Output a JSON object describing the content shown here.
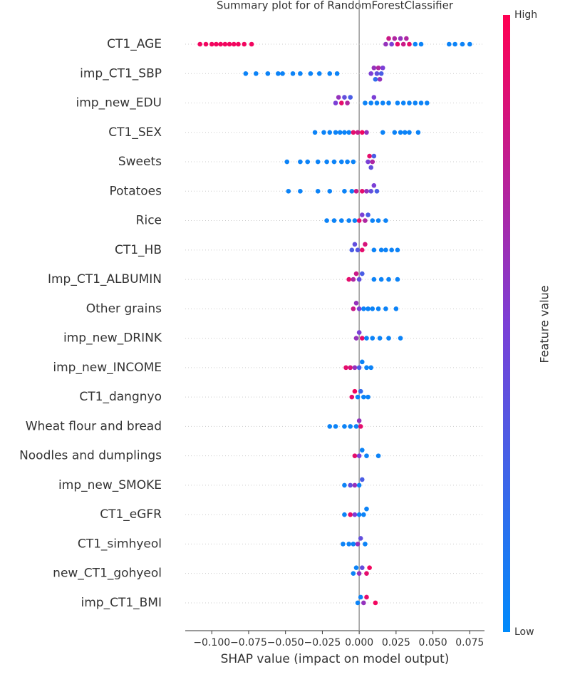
{
  "chart_data": {
    "type": "beeswarm",
    "title": "Summary plot for of RandomForestClassifier",
    "x_label": "SHAP value (impact on model output)",
    "colorbar_label": "Feature value",
    "colorbar_high": "High",
    "colorbar_low": "Low",
    "colormap": [
      "#008afb",
      "#7b3fd6",
      "#ff0052"
    ],
    "xlim": [
      -0.118,
      0.085
    ],
    "xticks": [
      {
        "value": -0.1,
        "label": "−0.100"
      },
      {
        "value": -0.075,
        "label": "−0.075"
      },
      {
        "value": -0.05,
        "label": "−0.050"
      },
      {
        "value": -0.025,
        "label": "−0.025"
      },
      {
        "value": 0,
        "label": "0.000"
      },
      0.025,
      {
        "value": 0.05,
        "label": "0.050"
      },
      0.075
    ],
    "series": [
      {
        "name": "CT1_AGE",
        "values": [
          -0.108,
          -0.104,
          -0.1,
          -0.097,
          -0.094,
          -0.091,
          -0.088,
          -0.085,
          -0.082,
          -0.078,
          -0.073,
          0.018,
          0.02,
          0.022,
          0.024,
          0.026,
          0.028,
          0.03,
          0.032,
          0.034,
          0.038,
          0.042,
          0.061,
          0.065,
          0.07,
          0.075
        ],
        "feature_values": [
          0.95,
          0.95,
          0.95,
          0.95,
          0.95,
          0.95,
          0.95,
          0.95,
          0.95,
          0.95,
          0.95,
          0.6,
          0.8,
          0.5,
          0.7,
          0.9,
          0.6,
          0.8,
          0.7,
          0.9,
          0.05,
          0.05,
          0.05,
          0.05,
          0.05,
          0.05
        ]
      },
      {
        "name": "imp_CT1_SBP",
        "values": [
          -0.077,
          -0.07,
          -0.062,
          -0.055,
          -0.052,
          -0.045,
          -0.04,
          -0.033,
          -0.027,
          -0.02,
          -0.015,
          0.008,
          0.01,
          0.012,
          0.013,
          0.015,
          0.016,
          0.011,
          0.014
        ],
        "feature_values": [
          0.05,
          0.05,
          0.05,
          0.05,
          0.05,
          0.05,
          0.05,
          0.05,
          0.05,
          0.05,
          0.05,
          0.5,
          0.6,
          0.4,
          0.7,
          0.3,
          0.5,
          0.2,
          0.6
        ]
      },
      {
        "name": "imp_new_EDU",
        "values": [
          -0.016,
          -0.014,
          -0.012,
          -0.01,
          -0.008,
          -0.006,
          0.004,
          0.008,
          0.01,
          0.012,
          0.016,
          0.02,
          0.026,
          0.03,
          0.034,
          0.038,
          0.042,
          0.046
        ],
        "feature_values": [
          0.5,
          0.6,
          0.9,
          0.4,
          0.7,
          0.3,
          0.05,
          0.05,
          0.5,
          0.05,
          0.05,
          0.05,
          0.05,
          0.05,
          0.05,
          0.05,
          0.05,
          0.05
        ]
      },
      {
        "name": "CT1_SEX",
        "values": [
          -0.03,
          -0.024,
          -0.02,
          -0.016,
          -0.013,
          -0.01,
          -0.007,
          -0.004,
          -0.001,
          0.002,
          0.005,
          0.016,
          0.024,
          0.028,
          0.031,
          0.034,
          0.04
        ],
        "feature_values": [
          0.05,
          0.05,
          0.05,
          0.05,
          0.05,
          0.05,
          0.05,
          0.9,
          0.8,
          0.95,
          0.6,
          0.05,
          0.05,
          0.05,
          0.05,
          0.05,
          0.05
        ]
      },
      {
        "name": "Sweets",
        "values": [
          -0.049,
          -0.04,
          -0.035,
          -0.028,
          -0.022,
          -0.017,
          -0.012,
          -0.008,
          -0.004,
          0.006,
          0.007,
          0.008,
          0.009,
          0.01
        ],
        "feature_values": [
          0.05,
          0.05,
          0.05,
          0.05,
          0.05,
          0.05,
          0.05,
          0.05,
          0.05,
          0.5,
          0.9,
          0.4,
          0.7,
          0.3
        ]
      },
      {
        "name": "Potatoes",
        "values": [
          -0.048,
          -0.04,
          -0.028,
          -0.02,
          -0.01,
          -0.005,
          -0.002,
          0.002,
          0.005,
          0.008,
          0.01,
          0.012
        ],
        "feature_values": [
          0.05,
          0.05,
          0.05,
          0.05,
          0.05,
          0.05,
          0.8,
          0.9,
          0.6,
          0.4,
          0.5,
          0.3
        ]
      },
      {
        "name": "Rice",
        "values": [
          -0.022,
          -0.017,
          -0.012,
          -0.007,
          -0.003,
          0,
          0.002,
          0.004,
          0.006,
          0.009,
          0.013,
          0.018
        ],
        "feature_values": [
          0.05,
          0.05,
          0.05,
          0.05,
          0.05,
          0.9,
          0.5,
          0.7,
          0.3,
          0.05,
          0.05,
          0.05
        ]
      },
      {
        "name": "CT1_HB",
        "values": [
          -0.005,
          -0.003,
          -0.001,
          0.002,
          0.004,
          0.01,
          0.015,
          0.018,
          0.022,
          0.026
        ],
        "feature_values": [
          0.3,
          0.4,
          0.35,
          0.9,
          0.85,
          0.05,
          0.05,
          0.05,
          0.05,
          0.05
        ]
      },
      {
        "name": "Imp_CT1_ALBUMIN",
        "values": [
          -0.007,
          -0.004,
          -0.002,
          0,
          0.002,
          0.01,
          0.015,
          0.02,
          0.026
        ],
        "feature_values": [
          0.9,
          0.7,
          0.8,
          0.4,
          0.3,
          0.05,
          0.05,
          0.05,
          0.05
        ]
      },
      {
        "name": "Other grains",
        "values": [
          -0.004,
          -0.002,
          0,
          0.003,
          0.006,
          0.009,
          0.013,
          0.018,
          0.025
        ],
        "feature_values": [
          0.8,
          0.6,
          0.5,
          0.05,
          0.05,
          0.05,
          0.05,
          0.05,
          0.05
        ]
      },
      {
        "name": "imp_new_DRINK",
        "values": [
          -0.002,
          0,
          0.002,
          0.005,
          0.009,
          0.014,
          0.02,
          0.028
        ],
        "feature_values": [
          0.6,
          0.5,
          0.9,
          0.05,
          0.05,
          0.05,
          0.05,
          0.05
        ]
      },
      {
        "name": "imp_new_INCOME",
        "values": [
          -0.009,
          -0.006,
          -0.003,
          0,
          0.002,
          0.005,
          0.008
        ],
        "feature_values": [
          0.9,
          0.85,
          0.6,
          0.3,
          0.05,
          0.05,
          0.05
        ]
      },
      {
        "name": "CT1_dangnyo",
        "values": [
          -0.005,
          -0.003,
          -0.001,
          0.001,
          0.003,
          0.006
        ],
        "feature_values": [
          0.9,
          0.95,
          0.05,
          0.2,
          0.05,
          0.05
        ]
      },
      {
        "name": "Wheat flour and bread",
        "values": [
          -0.02,
          -0.016,
          -0.01,
          -0.006,
          -0.002,
          0,
          0.001
        ],
        "feature_values": [
          0.05,
          0.05,
          0.05,
          0.05,
          0.05,
          0.6,
          0.9
        ]
      },
      {
        "name": "Noodles and dumplings",
        "values": [
          -0.003,
          0,
          0.002,
          0.005,
          0.013
        ],
        "feature_values": [
          0.9,
          0.5,
          0.05,
          0.05,
          0.05
        ]
      },
      {
        "name": "imp_new_SMOKE",
        "values": [
          -0.01,
          -0.006,
          -0.003,
          0,
          0.002
        ],
        "feature_values": [
          0.05,
          0.4,
          0.6,
          0.05,
          0.3
        ]
      },
      {
        "name": "CT1_eGFR",
        "values": [
          -0.01,
          -0.006,
          -0.003,
          0,
          0.003,
          0.005
        ],
        "feature_values": [
          0.05,
          0.9,
          0.5,
          0.05,
          0.05,
          0.05
        ]
      },
      {
        "name": "CT1_simhyeol",
        "values": [
          -0.011,
          -0.007,
          -0.004,
          -0.001,
          0.001,
          0.004
        ],
        "feature_values": [
          0.05,
          0.05,
          0.05,
          0.6,
          0.4,
          0.05
        ]
      },
      {
        "name": "new_CT1_gohyeol",
        "values": [
          -0.004,
          -0.002,
          0,
          0.002,
          0.005,
          0.007
        ],
        "feature_values": [
          0.05,
          0.05,
          0.6,
          0.4,
          0.9,
          0.95
        ]
      },
      {
        "name": "imp_CT1_BMI",
        "values": [
          -0.001,
          0.001,
          0.003,
          0.005,
          0.011
        ],
        "feature_values": [
          0.05,
          0.05,
          0.6,
          0.9,
          0.95
        ]
      }
    ]
  }
}
